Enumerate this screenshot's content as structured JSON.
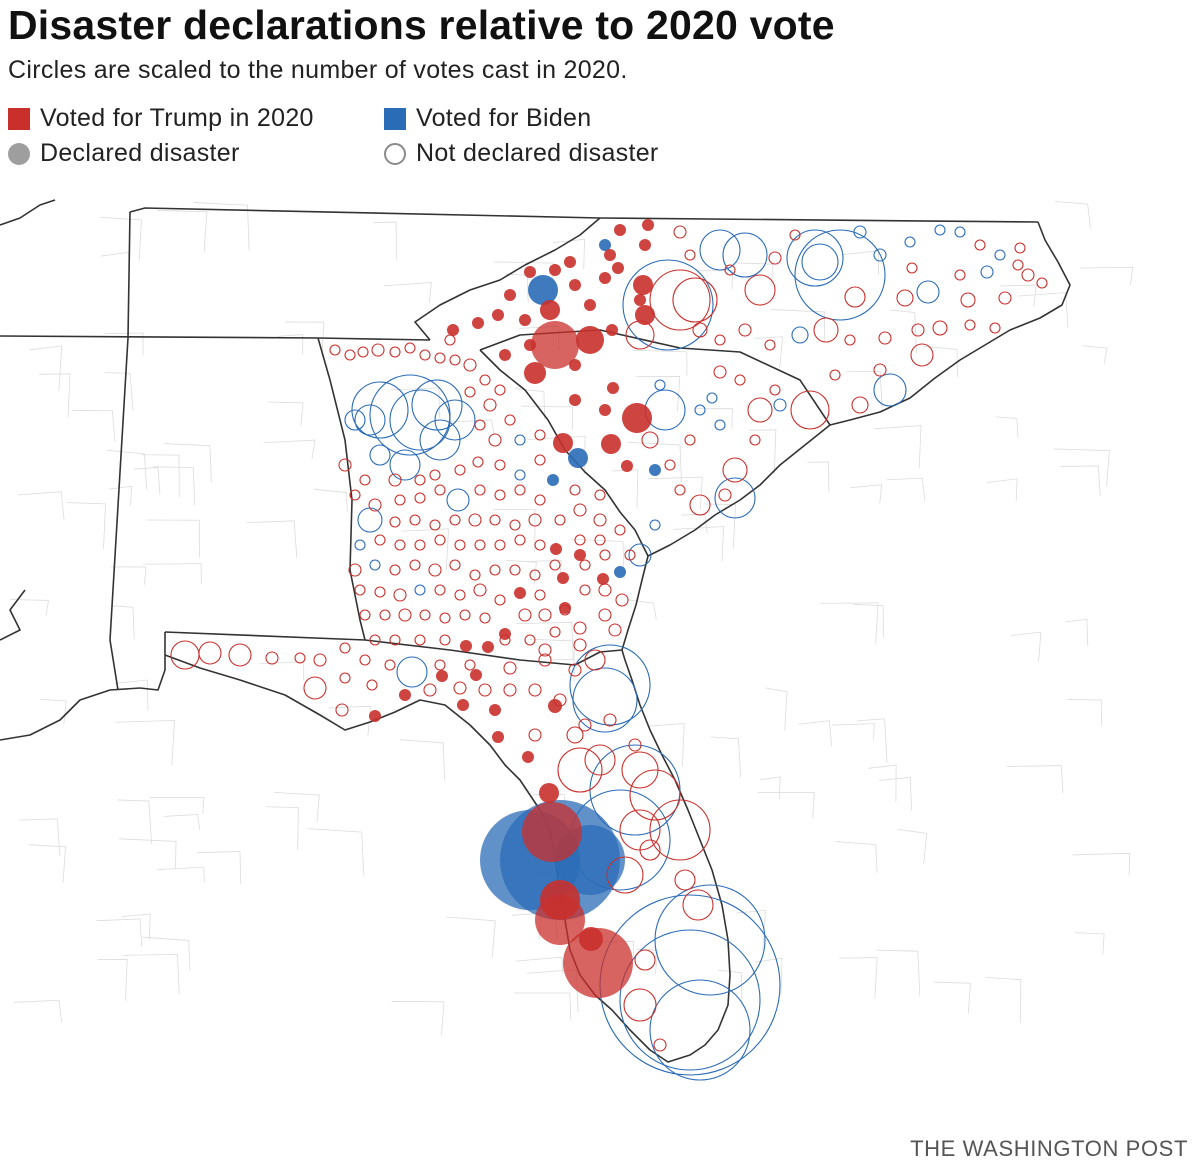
{
  "header": {
    "title": "Disaster declarations relative to 2020 vote",
    "subtitle": "Circles are scaled to the number of votes cast in 2020."
  },
  "legend": {
    "trump": "Voted for Trump in 2020",
    "biden": "Voted for Biden",
    "declared": "Declared disaster",
    "not_declared": "Not declared disaster"
  },
  "colors": {
    "trump": "#c9302c",
    "biden": "#2b6cb7",
    "declared_legend": "#9e9e9e",
    "state_border": "#333333",
    "county_border": "#dcdcdc"
  },
  "credit": "THE WASHINGTON POST"
}
